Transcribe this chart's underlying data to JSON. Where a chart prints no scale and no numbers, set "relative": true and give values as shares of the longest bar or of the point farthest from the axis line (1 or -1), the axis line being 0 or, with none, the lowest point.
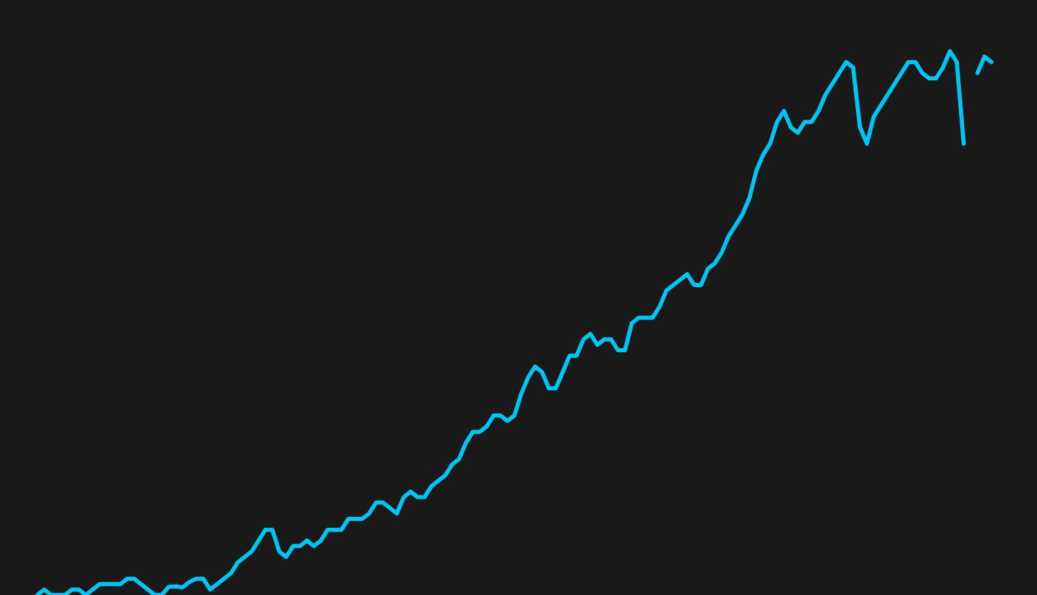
{
  "chart_data": {
    "type": "line",
    "relative": true,
    "marker": "none",
    "line_style": "solid",
    "categories": [
      null,
      null,
      null,
      null,
      null,
      null,
      null,
      null,
      null,
      null,
      null,
      null,
      null,
      null,
      null,
      null,
      null,
      null,
      null,
      null,
      null,
      null,
      null,
      null,
      null,
      null,
      null,
      null,
      null,
      null,
      null,
      null,
      null,
      null,
      null,
      null,
      null,
      null,
      null,
      null,
      null,
      null,
      null,
      null,
      null,
      null,
      null,
      null,
      null,
      null,
      null,
      null,
      null,
      null,
      null,
      null,
      null,
      null,
      null,
      null,
      null,
      null,
      null,
      null,
      null,
      null,
      null,
      null,
      null,
      null,
      null,
      null,
      null,
      null,
      null,
      null,
      null,
      null,
      null,
      null,
      null,
      null,
      null,
      null,
      null,
      null,
      null,
      null,
      null,
      null,
      null,
      null,
      null,
      null,
      null,
      null,
      null,
      null,
      null,
      null,
      null,
      null,
      null,
      null,
      null,
      null,
      null,
      null,
      null,
      null,
      null,
      null,
      null,
      null,
      null,
      null,
      null,
      null,
      null,
      null,
      null,
      null,
      null,
      null,
      null,
      null,
      null,
      null,
      null,
      null,
      null,
      null,
      null,
      null,
      null,
      null,
      null,
      null,
      null
    ],
    "series": [
      {
        "color": "#00c4f2",
        "values": [
          0.0,
          0.01,
          0.0,
          0.0,
          0.0,
          0.01,
          0.01,
          0.0,
          0.01,
          0.02,
          0.02,
          0.02,
          0.02,
          0.03,
          0.03,
          0.02,
          0.01,
          0.0,
          0.0,
          0.015,
          0.016,
          0.014,
          0.024,
          0.03,
          0.03,
          0.01,
          0.02,
          0.03,
          0.04,
          0.06,
          0.07,
          0.08,
          0.1,
          0.12,
          0.12,
          0.08,
          0.07,
          0.09,
          0.09,
          0.1,
          0.09,
          0.1,
          0.12,
          0.12,
          0.12,
          0.14,
          0.14,
          0.14,
          0.15,
          0.17,
          0.17,
          0.16,
          0.15,
          0.18,
          0.19,
          0.18,
          0.18,
          0.2,
          0.21,
          0.22,
          0.24,
          0.25,
          0.28,
          0.3,
          0.3,
          0.31,
          0.33,
          0.33,
          0.32,
          0.33,
          0.37,
          0.4,
          0.42,
          0.41,
          0.38,
          0.38,
          0.41,
          0.44,
          0.44,
          0.47,
          0.48,
          0.46,
          0.47,
          0.47,
          0.45,
          0.45,
          0.5,
          0.51,
          0.51,
          0.51,
          0.53,
          0.56,
          0.57,
          0.58,
          0.59,
          0.57,
          0.57,
          0.6,
          0.61,
          0.63,
          0.66,
          0.68,
          0.7,
          0.73,
          0.78,
          0.81,
          0.83,
          0.87,
          0.89,
          0.86,
          0.85,
          0.87,
          0.87,
          0.89,
          0.92,
          0.94,
          0.96,
          0.98,
          0.97,
          0.86,
          0.83,
          0.88,
          0.9,
          0.92,
          0.94,
          0.96,
          0.98,
          0.98,
          0.96,
          0.95,
          0.95,
          0.97,
          1.0,
          0.98,
          0.83,
          null,
          null,
          null,
          null
        ]
      },
      {
        "color": "#00c4f2",
        "values": [
          null,
          null,
          null,
          null,
          null,
          null,
          null,
          null,
          null,
          null,
          null,
          null,
          null,
          null,
          null,
          null,
          null,
          null,
          null,
          null,
          null,
          null,
          null,
          null,
          null,
          null,
          null,
          null,
          null,
          null,
          null,
          null,
          null,
          null,
          null,
          null,
          null,
          null,
          null,
          null,
          null,
          null,
          null,
          null,
          null,
          null,
          null,
          null,
          null,
          null,
          null,
          null,
          null,
          null,
          null,
          null,
          null,
          null,
          null,
          null,
          null,
          null,
          null,
          null,
          null,
          null,
          null,
          null,
          null,
          null,
          null,
          null,
          null,
          null,
          null,
          null,
          null,
          null,
          null,
          null,
          null,
          null,
          null,
          null,
          null,
          null,
          null,
          null,
          null,
          null,
          null,
          null,
          null,
          null,
          null,
          null,
          null,
          null,
          null,
          null,
          null,
          null,
          null,
          null,
          null,
          null,
          null,
          null,
          null,
          null,
          null,
          null,
          null,
          null,
          null,
          null,
          null,
          null,
          null,
          null,
          null,
          null,
          null,
          null,
          null,
          null,
          null,
          null,
          null,
          null,
          null,
          null,
          null,
          null,
          null,
          null,
          0.96,
          0.99,
          0.98
        ]
      }
    ]
  }
}
